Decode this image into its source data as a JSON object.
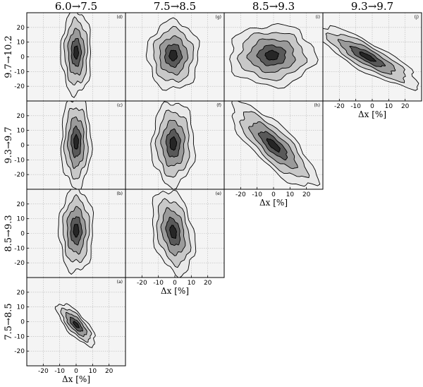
{
  "chart_data": {
    "type": "heatmap",
    "title": "",
    "column_titles": [
      "6.0→7.5",
      "7.5→8.5",
      "8.5→9.3",
      "9.3→9.7"
    ],
    "row_titles": [
      "9.7→10.2",
      "9.3→9.7",
      "8.5→9.3",
      "7.5→8.5"
    ],
    "xlabel": "Δx [%]",
    "ylabel": "",
    "xlim": [
      -30,
      30
    ],
    "ylim": [
      -30,
      30
    ],
    "xticks": [
      -20,
      -10,
      0,
      10,
      20
    ],
    "yticks": [
      -20,
      -10,
      0,
      10,
      20
    ],
    "grid": true,
    "contour_fills": [
      "#e9e9e9",
      "#c8c8c8",
      "#9a9a9a",
      "#595959",
      "#262626"
    ],
    "panels": [
      {
        "label": "(d)",
        "row": 0,
        "col": 0,
        "center": [
          0,
          3
        ],
        "sigma_x": 3.5,
        "sigma_y": 11,
        "rho": 0.0
      },
      {
        "label": "(g)",
        "row": 0,
        "col": 1,
        "center": [
          -1,
          1
        ],
        "sigma_x": 6,
        "sigma_y": 9,
        "rho": 0.0
      },
      {
        "label": "(i)",
        "row": 0,
        "col": 2,
        "center": [
          -1,
          1
        ],
        "sigma_x": 10,
        "sigma_y": 8,
        "rho": 0.0
      },
      {
        "label": "(j)",
        "row": 0,
        "col": 3,
        "center": [
          -3,
          0
        ],
        "sigma_x": 12,
        "sigma_y": 8,
        "rho": -0.85
      },
      {
        "label": "(c)",
        "row": 1,
        "col": 0,
        "center": [
          0,
          2
        ],
        "sigma_x": 3.5,
        "sigma_y": 12,
        "rho": 0.0
      },
      {
        "label": "(f)",
        "row": 1,
        "col": 1,
        "center": [
          -1,
          1
        ],
        "sigma_x": 5,
        "sigma_y": 11,
        "rho": 0.0
      },
      {
        "label": "(h)",
        "row": 1,
        "col": 2,
        "center": [
          0,
          0
        ],
        "sigma_x": 10,
        "sigma_y": 11,
        "rho": -0.8
      },
      {
        "label": "(b)",
        "row": 2,
        "col": 0,
        "center": [
          0,
          2
        ],
        "sigma_x": 4,
        "sigma_y": 11,
        "rho": 0.0
      },
      {
        "label": "(e)",
        "row": 2,
        "col": 1,
        "center": [
          -1,
          1
        ],
        "sigma_x": 5,
        "sigma_y": 11,
        "rho": -0.3
      },
      {
        "label": "(a)",
        "row": 3,
        "col": 0,
        "center": [
          0,
          -2
        ],
        "sigma_x": 4.5,
        "sigma_y": 5.5,
        "rho": -0.75
      }
    ]
  }
}
